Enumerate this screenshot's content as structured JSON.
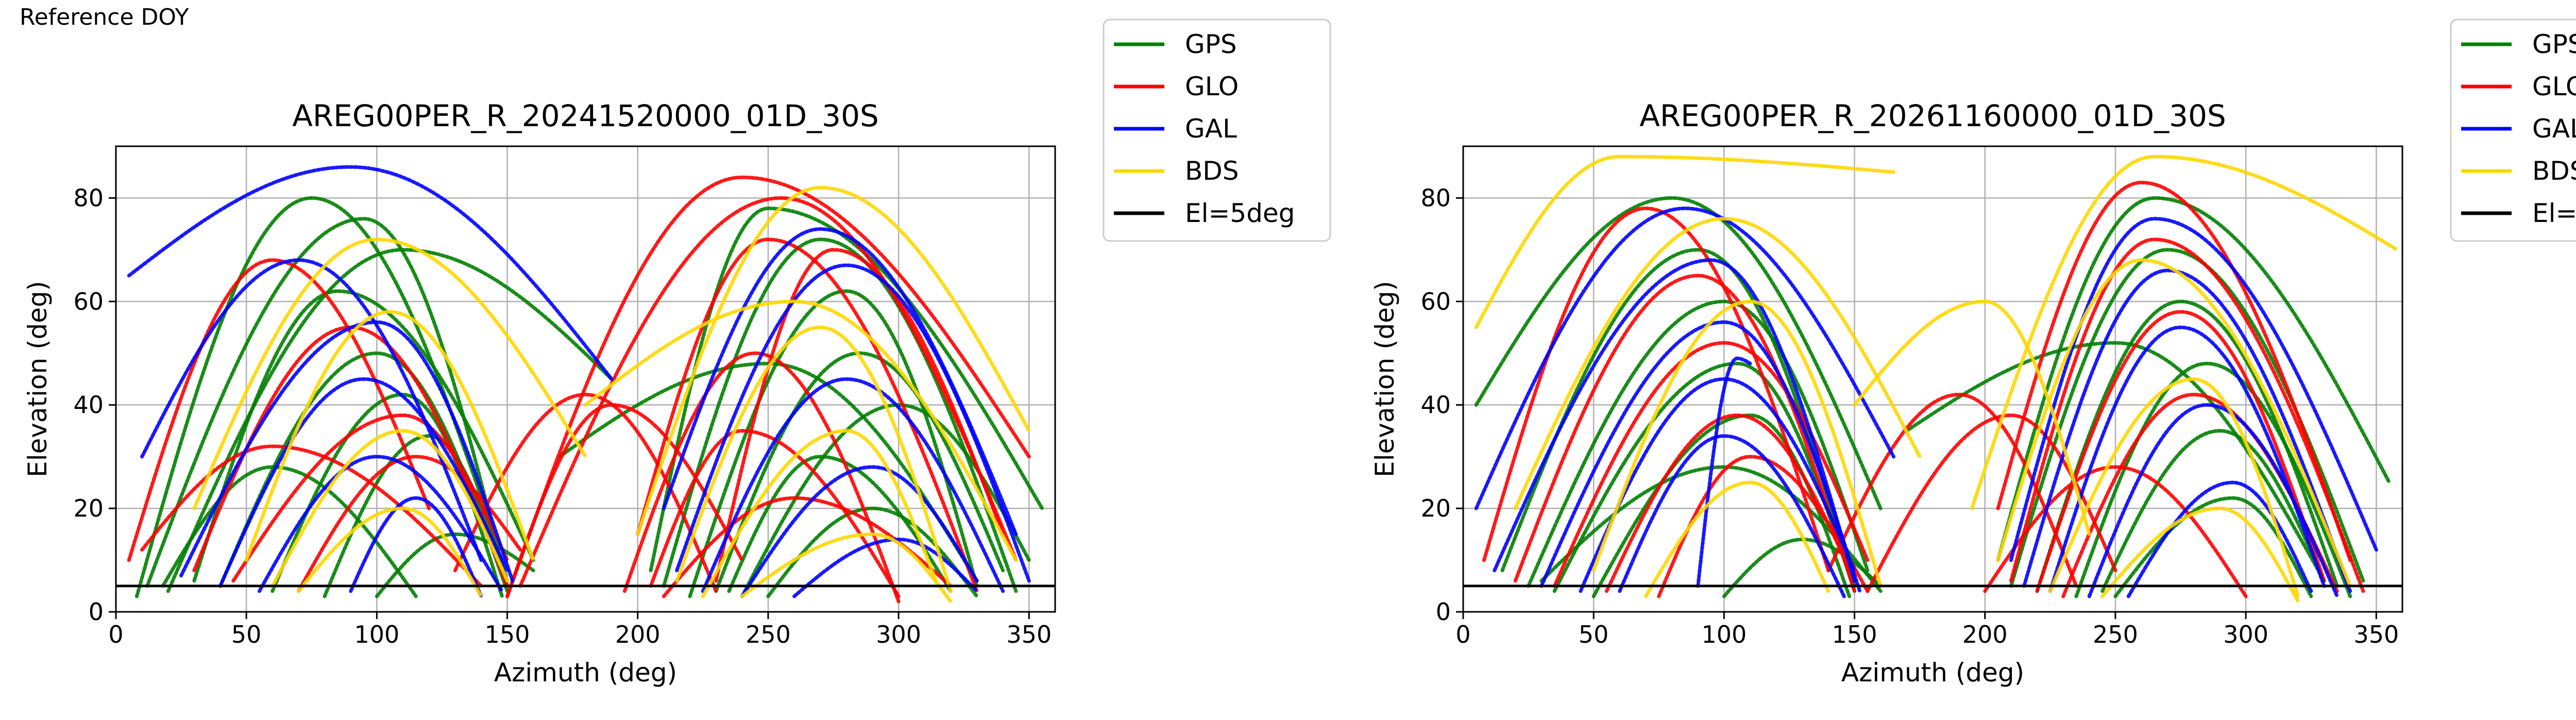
{
  "header": {
    "label": "Reference DOY"
  },
  "colors": {
    "GPS": "#008000",
    "GLO": "#ff0000",
    "GAL": "#0000ff",
    "BDS": "#ffd700",
    "El=5deg": "#000000"
  },
  "legend": [
    {
      "name": "GPS",
      "color": "#008000"
    },
    {
      "name": "GLO",
      "color": "#ff0000"
    },
    {
      "name": "GAL",
      "color": "#0000ff"
    },
    {
      "name": "BDS",
      "color": "#ffd700"
    },
    {
      "name": "El=5deg",
      "color": "#000000"
    }
  ],
  "chart_data": [
    {
      "type": "scatter",
      "title": "AREG00PER_R_20241520000_01D_30S",
      "xlabel": "Azimuth (deg)",
      "ylabel": "Elevation (deg)",
      "xlim": [
        0,
        360
      ],
      "ylim": [
        0,
        90
      ],
      "xticks": [
        0,
        50,
        100,
        150,
        200,
        250,
        300,
        350
      ],
      "yticks": [
        0,
        20,
        40,
        60,
        80
      ],
      "grid": true,
      "legend_position": "outside top-right",
      "reference_line": {
        "name": "El=5deg",
        "y": 5
      },
      "series": [
        {
          "name": "GPS",
          "tracks": [
            [
              8,
              3,
              75,
              80,
              145,
              15
            ],
            [
              12,
              5,
              95,
              76,
              150,
              5
            ],
            [
              20,
              4,
              110,
              70,
              190,
              45
            ],
            [
              30,
              6,
              85,
              62,
              160,
              10
            ],
            [
              40,
              5,
              100,
              50,
              150,
              4
            ],
            [
              60,
              4,
              110,
              42,
              148,
              3
            ],
            [
              80,
              3,
              120,
              34,
              150,
              6
            ],
            [
              18,
              5,
              60,
              28,
              115,
              3
            ],
            [
              205,
              8,
              250,
              78,
              355,
              20
            ],
            [
              210,
              5,
              270,
              72,
              345,
              4
            ],
            [
              220,
              3,
              280,
              62,
              330,
              5
            ],
            [
              230,
              4,
              285,
              50,
              340,
              8
            ],
            [
              240,
              3,
              300,
              40,
              350,
              10
            ],
            [
              235,
              4,
              270,
              30,
              320,
              4
            ],
            [
              250,
              3,
              290,
              20,
              330,
              3
            ],
            [
              170,
              30,
              250,
              48,
              330,
              6
            ],
            [
              100,
              3,
              130,
              15,
              160,
              8
            ]
          ]
        },
        {
          "name": "GLO",
          "tracks": [
            [
              5,
              10,
              60,
              68,
              120,
              20
            ],
            [
              30,
              8,
              90,
              55,
              150,
              5
            ],
            [
              45,
              6,
              110,
              38,
              150,
              10
            ],
            [
              70,
              4,
              115,
              30,
              155,
              12
            ],
            [
              150,
              3,
              240,
              84,
              350,
              30
            ],
            [
              155,
              5,
              255,
              80,
              345,
              10
            ],
            [
              200,
              15,
              250,
              72,
              330,
              4
            ],
            [
              150,
              3,
              190,
              40,
              240,
              10
            ],
            [
              130,
              8,
              180,
              42,
              230,
              4
            ],
            [
              205,
              5,
              240,
              35,
              300,
              3
            ],
            [
              210,
              3,
              260,
              22,
              320,
              5
            ],
            [
              195,
              4,
              245,
              50,
              300,
              2
            ],
            [
              10,
              12,
              60,
              32,
              140,
              5
            ],
            [
              230,
              6,
              275,
              70,
              340,
              15
            ]
          ]
        },
        {
          "name": "GAL",
          "tracks": [
            [
              5,
              65,
              90,
              86,
              190,
              45
            ],
            [
              10,
              30,
              70,
              68,
              140,
              10
            ],
            [
              25,
              7,
              100,
              56,
              152,
              6
            ],
            [
              40,
              5,
              95,
              45,
              150,
              8
            ],
            [
              55,
              4,
              100,
              30,
              148,
              4
            ],
            [
              210,
              20,
              270,
              74,
              345,
              15
            ],
            [
              215,
              8,
              280,
              67,
              350,
              6
            ],
            [
              225,
              4,
              280,
              45,
              340,
              4
            ],
            [
              240,
              3,
              290,
              28,
              330,
              6
            ],
            [
              90,
              4,
              115,
              22,
              140,
              3
            ],
            [
              260,
              3,
              300,
              14,
              330,
              4
            ]
          ]
        },
        {
          "name": "BDS",
          "tracks": [
            [
              30,
              20,
              100,
              72,
              180,
              30
            ],
            [
              50,
              10,
              105,
              58,
              160,
              10
            ],
            [
              60,
              5,
              110,
              35,
              150,
              6
            ],
            [
              200,
              15,
              270,
              82,
              350,
              35
            ],
            [
              215,
              6,
              270,
              55,
              320,
              4
            ],
            [
              225,
              3,
              280,
              35,
              315,
              5
            ],
            [
              180,
              40,
              260,
              60,
              345,
              10
            ],
            [
              70,
              4,
              110,
              20,
              140,
              3
            ],
            [
              240,
              3,
              290,
              15,
              320,
              2
            ]
          ]
        }
      ]
    },
    {
      "type": "scatter",
      "title": "AREG00PER_R_20261160000_01D_30S",
      "xlabel": "Azimuth (deg)",
      "ylabel": "Elevation (deg)",
      "xlim": [
        0,
        360
      ],
      "ylim": [
        0,
        90
      ],
      "xticks": [
        0,
        50,
        100,
        150,
        200,
        250,
        300,
        350
      ],
      "yticks": [
        0,
        20,
        40,
        60,
        80
      ],
      "grid": true,
      "legend_position": "outside top-right",
      "reference_line": {
        "name": "El=5deg",
        "y": 5
      },
      "series": [
        {
          "name": "GPS",
          "tracks": [
            [
              5,
              40,
              80,
              80,
              160,
              20
            ],
            [
              15,
              8,
              90,
              70,
              150,
              5
            ],
            [
              25,
              5,
              100,
              60,
              155,
              8
            ],
            [
              35,
              4,
              105,
              48,
              150,
              4
            ],
            [
              50,
              3,
              110,
              38,
              148,
              3
            ],
            [
              30,
              6,
              100,
              28,
              160,
              4
            ],
            [
              205,
              10,
              265,
              80,
              355,
              25
            ],
            [
              210,
              5,
              270,
              70,
              345,
              6
            ],
            [
              220,
              4,
              275,
              60,
              335,
              5
            ],
            [
              235,
              3,
              285,
              48,
              340,
              3
            ],
            [
              245,
              4,
              290,
              35,
              330,
              6
            ],
            [
              250,
              3,
              295,
              22,
              325,
              3
            ],
            [
              170,
              35,
              250,
              52,
              330,
              6
            ],
            [
              100,
              3,
              130,
              14,
              160,
              5
            ]
          ]
        },
        {
          "name": "GLO",
          "tracks": [
            [
              8,
              10,
              70,
              78,
              140,
              8
            ],
            [
              20,
              6,
              90,
              65,
              150,
              4
            ],
            [
              35,
              5,
              100,
              52,
              155,
              10
            ],
            [
              55,
              4,
              105,
              38,
              150,
              6
            ],
            [
              75,
              3,
              110,
              30,
              155,
              4
            ],
            [
              140,
              8,
              190,
              42,
              235,
              5
            ],
            [
              155,
              4,
              210,
              38,
              250,
              8
            ],
            [
              205,
              20,
              260,
              83,
              340,
              10
            ],
            [
              210,
              6,
              265,
              72,
              345,
              4
            ],
            [
              220,
              4,
              275,
              58,
              330,
              6
            ],
            [
              230,
              3,
              280,
              42,
              335,
              4
            ],
            [
              200,
              4,
              250,
              28,
              300,
              3
            ]
          ]
        },
        {
          "name": "GAL",
          "tracks": [
            [
              5,
              20,
              85,
              78,
              165,
              30
            ],
            [
              12,
              8,
              95,
              68,
              150,
              6
            ],
            [
              30,
              5,
              100,
              56,
              152,
              4
            ],
            [
              45,
              4,
              100,
              45,
              150,
              8
            ],
            [
              60,
              4,
              100,
              34,
              146,
              3
            ],
            [
              90,
              5,
              105,
              49,
              110,
              48
            ],
            [
              210,
              10,
              265,
              76,
              350,
              12
            ],
            [
              215,
              5,
              270,
              66,
              340,
              4
            ],
            [
              225,
              4,
              275,
              55,
              330,
              5
            ],
            [
              240,
              3,
              285,
              40,
              335,
              3
            ],
            [
              255,
              3,
              295,
              25,
              325,
              4
            ]
          ]
        },
        {
          "name": "BDS",
          "tracks": [
            [
              5,
              55,
              60,
              88,
              165,
              85
            ],
            [
              20,
              20,
              100,
              76,
              175,
              30
            ],
            [
              50,
              8,
              110,
              60,
              160,
              5
            ],
            [
              70,
              3,
              110,
              25,
              140,
              4
            ],
            [
              195,
              20,
              265,
              88,
              358,
              70
            ],
            [
              205,
              10,
              260,
              68,
              340,
              5
            ],
            [
              225,
              4,
              280,
              45,
              320,
              3
            ],
            [
              245,
              3,
              290,
              20,
              320,
              2
            ],
            [
              150,
              40,
              200,
              60,
              240,
              15
            ]
          ]
        }
      ]
    }
  ]
}
